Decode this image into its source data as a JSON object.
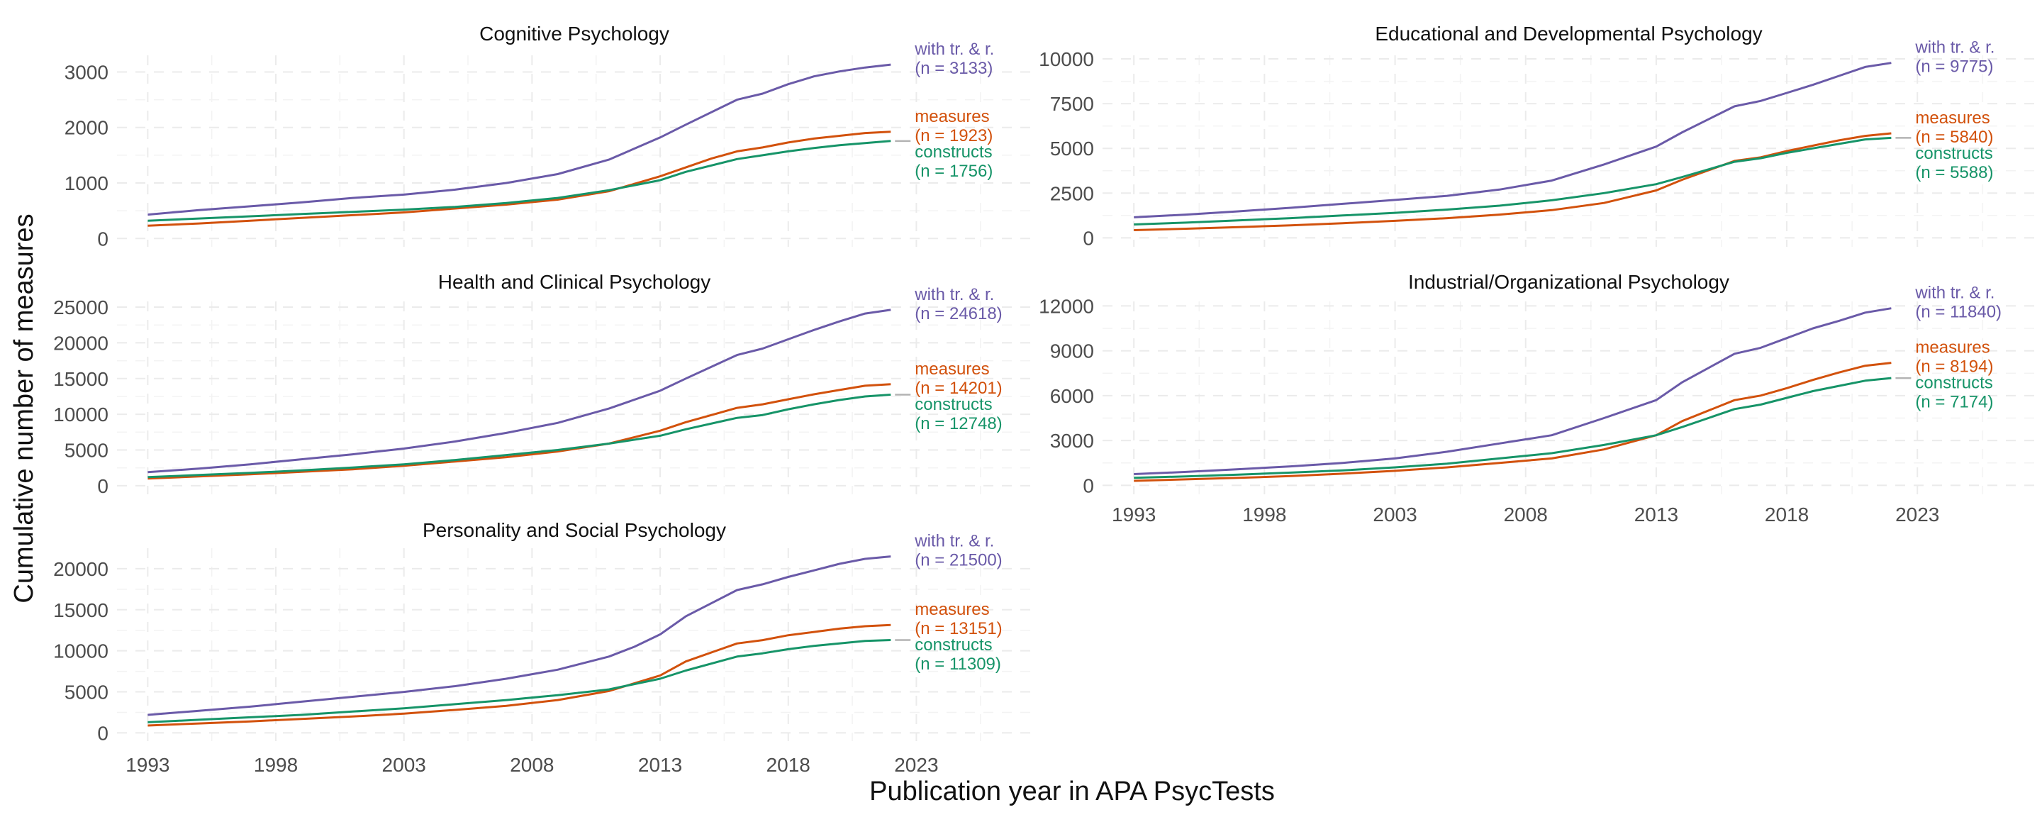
{
  "chart_data": {
    "type": "line",
    "xlabel": "Publication year in APA PsycTests",
    "ylabel": "Cumulative number of measures",
    "x_ticks": [
      1993,
      1998,
      2003,
      2008,
      2013,
      2018,
      2023
    ],
    "xlim": [
      1991.8,
      2027.5
    ],
    "grid": true,
    "colors": {
      "with_tr": "#6a5aa8",
      "measures": "#d2510c",
      "constructs": "#169468",
      "leader": "#b3b3b3"
    },
    "panels": [
      {
        "title": "Cognitive Psychology",
        "ylim": [
          -150,
          3300
        ],
        "y_ticks": [
          0,
          1000,
          2000,
          3000
        ],
        "y_tick_labels": [
          "0",
          "1000",
          "2000",
          "3000"
        ],
        "series": [
          {
            "key": "with_tr",
            "label_line1": "with tr. & r.",
            "label_line2": "(n = 3133)",
            "x": [
              1993,
              1995,
              1997,
              1999,
              2001,
              2003,
              2005,
              2007,
              2009,
              2011,
              2013,
              2014,
              2016,
              2017,
              2018,
              2019,
              2020,
              2021,
              2022
            ],
            "values": [
              430,
              510,
              580,
              650,
              730,
              790,
              880,
              1000,
              1160,
              1420,
              1820,
              2050,
              2500,
              2610,
              2780,
              2920,
              3010,
              3080,
              3133
            ]
          },
          {
            "key": "measures",
            "label_line1": "measures",
            "label_line2": "(n = 1923)",
            "x": [
              1993,
              1995,
              1997,
              1999,
              2001,
              2003,
              2005,
              2007,
              2009,
              2011,
              2013,
              2015,
              2016,
              2017,
              2018,
              2019,
              2020,
              2021,
              2022
            ],
            "values": [
              230,
              270,
              320,
              370,
              420,
              470,
              540,
              610,
              700,
              850,
              1120,
              1440,
              1570,
              1640,
              1730,
              1800,
              1850,
              1900,
              1923
            ]
          },
          {
            "key": "constructs",
            "label_line1": "constructs",
            "label_line2": "(n = 1756)",
            "x": [
              1993,
              1995,
              1997,
              1999,
              2001,
              2003,
              2005,
              2007,
              2009,
              2011,
              2013,
              2014,
              2016,
              2017,
              2018,
              2019,
              2020,
              2021,
              2022
            ],
            "values": [
              320,
              360,
              400,
              440,
              480,
              520,
              570,
              640,
              730,
              870,
              1050,
              1200,
              1430,
              1500,
              1570,
              1630,
              1680,
              1720,
              1756
            ]
          }
        ]
      },
      {
        "title": "Educational and Developmental Psychology",
        "ylim": [
          -500,
          10200
        ],
        "y_ticks": [
          0,
          2500,
          5000,
          7500,
          10000
        ],
        "y_tick_labels": [
          "0",
          "2500",
          "5000",
          "7500",
          "10000"
        ],
        "series": [
          {
            "key": "with_tr",
            "label_line1": "with tr. & r.",
            "label_line2": "(n = 9775)",
            "x": [
              1993,
              1995,
              1997,
              1999,
              2001,
              2003,
              2005,
              2007,
              2009,
              2011,
              2013,
              2014,
              2016,
              2017,
              2018,
              2019,
              2020,
              2021,
              2022
            ],
            "values": [
              1150,
              1300,
              1480,
              1680,
              1900,
              2120,
              2350,
              2700,
              3200,
              4100,
              5100,
              5900,
              7350,
              7650,
              8100,
              8550,
              9050,
              9550,
              9775
            ]
          },
          {
            "key": "measures",
            "label_line1": "measures",
            "label_line2": "(n = 5840)",
            "x": [
              1993,
              1995,
              1997,
              1999,
              2001,
              2003,
              2005,
              2007,
              2009,
              2011,
              2013,
              2014,
              2016,
              2017,
              2018,
              2019,
              2020,
              2021,
              2022
            ],
            "values": [
              430,
              510,
              600,
              700,
              820,
              950,
              1100,
              1300,
              1550,
              1950,
              2650,
              3250,
              4300,
              4500,
              4850,
              5150,
              5450,
              5700,
              5840
            ]
          },
          {
            "key": "constructs",
            "label_line1": "constructs",
            "label_line2": "(n = 5588)",
            "x": [
              1993,
              1995,
              1997,
              1999,
              2001,
              2003,
              2005,
              2007,
              2009,
              2011,
              2013,
              2014,
              2016,
              2017,
              2018,
              2019,
              2020,
              2021,
              2022
            ],
            "values": [
              750,
              850,
              980,
              1100,
              1250,
              1400,
              1580,
              1800,
              2100,
              2500,
              3000,
              3400,
              4250,
              4450,
              4750,
              5000,
              5250,
              5500,
              5588
            ]
          }
        ]
      },
      {
        "title": "Health and Clinical Psychology",
        "ylim": [
          -1200,
          25800
        ],
        "y_ticks": [
          0,
          5000,
          10000,
          15000,
          20000,
          25000
        ],
        "y_tick_labels": [
          "0",
          "5000",
          "10000",
          "15000",
          "20000",
          "25000"
        ],
        "series": [
          {
            "key": "with_tr",
            "label_line1": "with tr. & r.",
            "label_line2": "(n = 24618)",
            "x": [
              1993,
              1995,
              1997,
              1999,
              2001,
              2003,
              2005,
              2007,
              2009,
              2011,
              2013,
              2014,
              2016,
              2017,
              2018,
              2019,
              2020,
              2021,
              2022
            ],
            "values": [
              1900,
              2400,
              3000,
              3700,
              4400,
              5200,
              6200,
              7400,
              8800,
              10800,
              13300,
              15000,
              18300,
              19200,
              20500,
              21800,
              23000,
              24100,
              24618
            ]
          },
          {
            "key": "measures",
            "label_line1": "measures",
            "label_line2": "(n = 14201)",
            "x": [
              1993,
              1995,
              1997,
              1999,
              2001,
              2003,
              2005,
              2007,
              2009,
              2011,
              2013,
              2014,
              2016,
              2017,
              2018,
              2019,
              2020,
              2021,
              2022
            ],
            "values": [
              1000,
              1300,
              1600,
              1950,
              2300,
              2800,
              3400,
              4000,
              4800,
              5900,
              7700,
              8900,
              10900,
              11400,
              12100,
              12800,
              13400,
              14000,
              14201
            ]
          },
          {
            "key": "constructs",
            "label_line1": "constructs",
            "label_line2": "(n = 12748)",
            "x": [
              1993,
              1995,
              1997,
              1999,
              2001,
              2003,
              2005,
              2007,
              2009,
              2011,
              2013,
              2014,
              2016,
              2017,
              2018,
              2019,
              2020,
              2021,
              2022
            ],
            "values": [
              1200,
              1500,
              1800,
              2150,
              2550,
              3000,
              3600,
              4300,
              5000,
              5900,
              7000,
              7900,
              9500,
              9900,
              10700,
              11400,
              12000,
              12500,
              12748
            ]
          }
        ]
      },
      {
        "title": "Industrial/Organizational Psychology",
        "ylim": [
          -600,
          12300
        ],
        "y_ticks": [
          0,
          3000,
          6000,
          9000,
          12000
        ],
        "y_tick_labels": [
          "0",
          "3000",
          "6000",
          "9000",
          "12000"
        ],
        "series": [
          {
            "key": "with_tr",
            "label_line1": "with tr. & r.",
            "label_line2": "(n = 11840)",
            "x": [
              1993,
              1995,
              1997,
              1999,
              2001,
              2003,
              2005,
              2007,
              2009,
              2011,
              2013,
              2014,
              2016,
              2017,
              2018,
              2019,
              2020,
              2021,
              2022
            ],
            "values": [
              750,
              900,
              1080,
              1270,
              1500,
              1800,
              2250,
              2800,
              3350,
              4500,
              5700,
              6900,
              8800,
              9200,
              9850,
              10500,
              11000,
              11550,
              11840
            ]
          },
          {
            "key": "measures",
            "label_line1": "measures",
            "label_line2": "(n = 8194)",
            "x": [
              1993,
              1995,
              1997,
              1999,
              2001,
              2003,
              2005,
              2007,
              2009,
              2011,
              2013,
              2014,
              2016,
              2017,
              2018,
              2019,
              2020,
              2021,
              2022
            ],
            "values": [
              300,
              400,
              500,
              620,
              780,
              970,
              1200,
              1500,
              1800,
              2400,
              3350,
              4300,
              5700,
              6000,
              6500,
              7050,
              7550,
              8000,
              8194
            ]
          },
          {
            "key": "constructs",
            "label_line1": "constructs",
            "label_line2": "(n = 7174)",
            "x": [
              1993,
              1995,
              1997,
              1999,
              2001,
              2003,
              2005,
              2007,
              2009,
              2011,
              2013,
              2014,
              2016,
              2017,
              2018,
              2019,
              2020,
              2021,
              2022
            ],
            "values": [
              500,
              600,
              720,
              850,
              1000,
              1200,
              1450,
              1800,
              2150,
              2700,
              3350,
              3900,
              5100,
              5400,
              5850,
              6300,
              6650,
              7000,
              7174
            ]
          }
        ]
      },
      {
        "title": "Personality and Social Psychology",
        "ylim": [
          -1000,
          22500
        ],
        "y_ticks": [
          0,
          5000,
          10000,
          15000,
          20000
        ],
        "y_tick_labels": [
          "0",
          "5000",
          "10000",
          "15000",
          "20000"
        ],
        "series": [
          {
            "key": "with_tr",
            "label_line1": "with tr. & r.",
            "label_line2": "(n = 21500)",
            "x": [
              1993,
              1995,
              1997,
              1999,
              2001,
              2003,
              2005,
              2007,
              2009,
              2011,
              2012,
              2013,
              2014,
              2016,
              2017,
              2018,
              2019,
              2020,
              2021,
              2022
            ],
            "values": [
              2200,
              2700,
              3200,
              3800,
              4400,
              5000,
              5700,
              6600,
              7700,
              9300,
              10500,
              12000,
              14200,
              17400,
              18100,
              19000,
              19800,
              20600,
              21200,
              21500
            ]
          },
          {
            "key": "measures",
            "label_line1": "measures",
            "label_line2": "(n = 13151)",
            "x": [
              1993,
              1995,
              1997,
              1999,
              2001,
              2003,
              2005,
              2007,
              2009,
              2011,
              2013,
              2014,
              2016,
              2017,
              2018,
              2019,
              2020,
              2021,
              2022
            ],
            "values": [
              900,
              1150,
              1400,
              1700,
              2000,
              2350,
              2800,
              3300,
              4000,
              5100,
              7000,
              8700,
              10900,
              11300,
              11900,
              12300,
              12700,
              13000,
              13151
            ]
          },
          {
            "key": "constructs",
            "label_line1": "constructs",
            "label_line2": "(n = 11309)",
            "x": [
              1993,
              1995,
              1997,
              1999,
              2001,
              2003,
              2005,
              2007,
              2009,
              2011,
              2013,
              2014,
              2016,
              2017,
              2018,
              2019,
              2020,
              2021,
              2022
            ],
            "values": [
              1300,
              1600,
              1900,
              2200,
              2600,
              3000,
              3500,
              4000,
              4600,
              5300,
              6600,
              7600,
              9300,
              9700,
              10200,
              10600,
              10900,
              11200,
              11309
            ]
          }
        ]
      }
    ]
  }
}
